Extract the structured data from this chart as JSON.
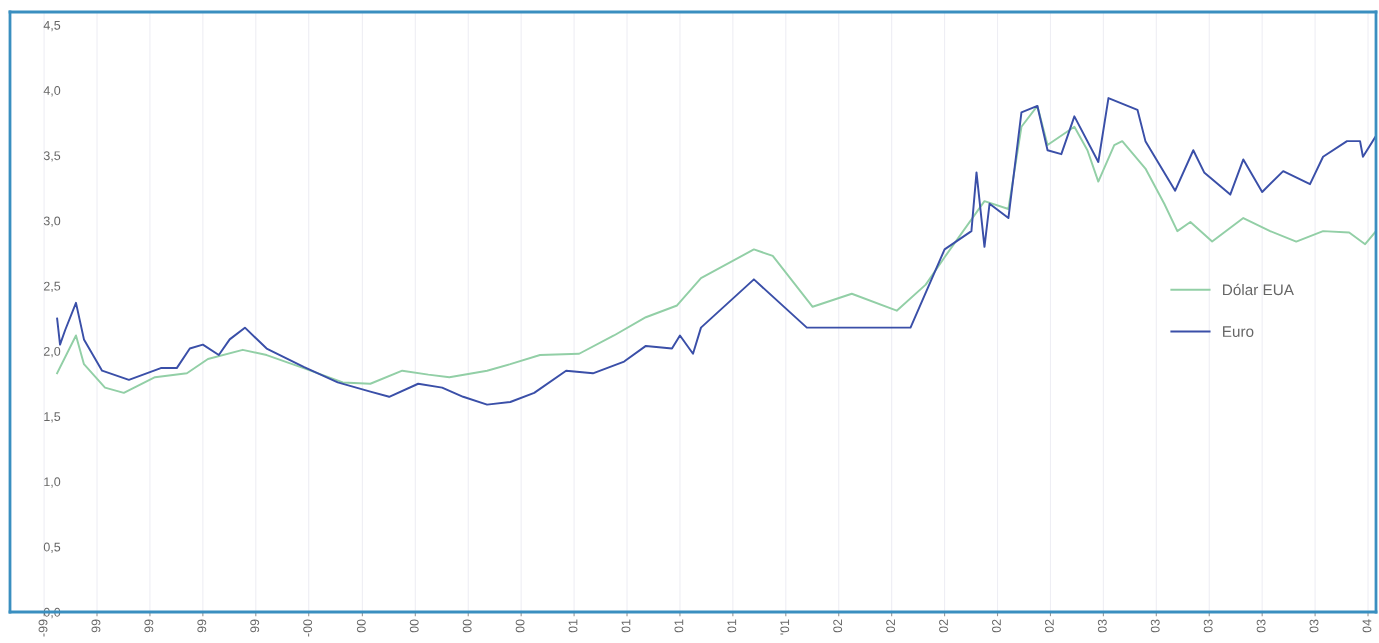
{
  "chart_data": {
    "type": "line",
    "xlim": [
      "1998-11-15",
      "2004-01-12"
    ],
    "xticks": [
      {
        "value": "1999-01-01",
        "label": "-99"
      },
      {
        "value": "1999-03-15",
        "label": "99"
      },
      {
        "value": "1999-05-27",
        "label": "99"
      },
      {
        "value": "1999-08-08",
        "label": "99"
      },
      {
        "value": "1999-10-20",
        "label": "99"
      },
      {
        "value": "2000-01-01",
        "label": "-00"
      },
      {
        "value": "2000-03-15",
        "label": "00"
      },
      {
        "value": "2000-05-27",
        "label": "00"
      },
      {
        "value": "2000-08-08",
        "label": "00"
      },
      {
        "value": "2000-10-20",
        "label": "00"
      },
      {
        "value": "2001-01-01",
        "label": "01"
      },
      {
        "value": "2001-03-15",
        "label": "01"
      },
      {
        "value": "2001-05-27",
        "label": "01"
      },
      {
        "value": "2001-08-08",
        "label": "01"
      },
      {
        "value": "2001-10-20",
        "label": "'01"
      },
      {
        "value": "2002-01-01",
        "label": "02"
      },
      {
        "value": "2002-03-15",
        "label": "02"
      },
      {
        "value": "2002-05-27",
        "label": "02"
      },
      {
        "value": "2002-08-08",
        "label": "02"
      },
      {
        "value": "2002-10-20",
        "label": "02"
      },
      {
        "value": "2003-01-01",
        "label": "03"
      },
      {
        "value": "2003-03-15",
        "label": "03"
      },
      {
        "value": "2003-05-27",
        "label": "03"
      },
      {
        "value": "2003-08-08",
        "label": "03"
      },
      {
        "value": "2003-10-20",
        "label": "03"
      },
      {
        "value": "2004-01-01",
        "label": "04"
      }
    ],
    "ylim": [
      0,
      4.6
    ],
    "yticks": [
      {
        "value": 0,
        "label": "0,0"
      },
      {
        "value": 0.5,
        "label": "0,5"
      },
      {
        "value": 1.0,
        "label": "1,0"
      },
      {
        "value": 1.5,
        "label": "1,5"
      },
      {
        "value": 2.0,
        "label": "2,0"
      },
      {
        "value": 2.5,
        "label": "2,5"
      },
      {
        "value": 3.0,
        "label": "3,0"
      },
      {
        "value": 3.5,
        "label": "3,5"
      },
      {
        "value": 4.0,
        "label": "4,0"
      },
      {
        "value": 4.5,
        "label": "4,5"
      }
    ],
    "grid": "x",
    "legend": "right",
    "series": [
      {
        "name": "Dólar EUA",
        "color": "#92cfa6",
        "x": [
          "1999-01-19",
          "1999-02-14",
          "1999-02-25",
          "1999-03-26",
          "1999-04-21",
          "1999-06-03",
          "1999-07-17",
          "1999-08-15",
          "1999-10-02",
          "1999-11-04",
          "1999-12-25",
          "2000-02-17",
          "2000-03-26",
          "2000-05-09",
          "2000-06-14",
          "2000-07-13",
          "2000-09-03",
          "2000-10-05",
          "2000-11-15",
          "2001-01-08",
          "2001-02-25",
          "2001-04-10",
          "2001-05-23",
          "2001-06-25",
          "2001-09-06",
          "2001-10-02",
          "2001-11-26",
          "2002-01-19",
          "2002-03-22",
          "2002-05-01",
          "2002-05-27",
          "2002-07-21",
          "2002-08-23",
          "2002-09-10",
          "2002-10-02",
          "2002-10-16",
          "2002-11-22",
          "2002-12-10",
          "2002-12-25",
          "2003-01-16",
          "2003-01-27",
          "2003-02-28",
          "2003-03-26",
          "2003-04-13",
          "2003-05-01",
          "2003-05-31",
          "2003-07-13",
          "2003-08-19",
          "2003-09-24",
          "2003-10-31",
          "2003-12-06",
          "2003-12-28",
          "2004-01-12"
        ],
        "values": [
          1.83,
          2.12,
          1.9,
          1.72,
          1.68,
          1.8,
          1.83,
          1.94,
          2.01,
          1.97,
          1.87,
          1.76,
          1.75,
          1.85,
          1.82,
          1.8,
          1.85,
          1.9,
          1.97,
          1.98,
          2.12,
          2.26,
          2.35,
          2.56,
          2.78,
          2.73,
          2.34,
          2.44,
          2.31,
          2.51,
          2.72,
          3.15,
          3.09,
          3.72,
          3.88,
          3.58,
          3.72,
          3.54,
          3.3,
          3.58,
          3.61,
          3.4,
          3.13,
          2.92,
          2.99,
          2.84,
          3.02,
          2.92,
          2.84,
          2.92,
          2.91,
          2.82,
          2.92
        ]
      },
      {
        "name": "Euro",
        "color": "#3a4fa8",
        "x": [
          "1999-01-19",
          "1999-01-23",
          "1999-01-30",
          "1999-02-14",
          "1999-02-25",
          "1999-03-22",
          "1999-04-28",
          "1999-06-11",
          "1999-07-03",
          "1999-07-21",
          "1999-08-08",
          "1999-08-30",
          "1999-09-14",
          "1999-10-05",
          "1999-11-04",
          "1999-12-25",
          "2000-02-10",
          "2000-03-26",
          "2000-04-21",
          "2000-05-31",
          "2000-07-03",
          "2000-08-01",
          "2000-09-03",
          "2000-10-05",
          "2000-11-07",
          "2000-12-21",
          "2001-01-27",
          "2001-03-11",
          "2001-04-10",
          "2001-05-16",
          "2001-05-27",
          "2001-06-14",
          "2001-06-25",
          "2001-09-06",
          "2001-11-18",
          "2002-04-10",
          "2002-05-27",
          "2002-07-03",
          "2002-07-10",
          "2002-07-21",
          "2002-07-28",
          "2002-08-23",
          "2002-09-10",
          "2002-10-02",
          "2002-10-16",
          "2002-11-04",
          "2002-11-22",
          "2002-12-25",
          "2003-01-08",
          "2003-02-17",
          "2003-02-28",
          "2003-04-10",
          "2003-05-05",
          "2003-05-20",
          "2003-06-25",
          "2003-07-13",
          "2003-08-08",
          "2003-09-06",
          "2003-10-13",
          "2003-10-31",
          "2003-12-03",
          "2003-12-21",
          "2003-12-25",
          "2004-01-12"
        ],
        "values": [
          2.25,
          2.05,
          2.16,
          2.37,
          2.09,
          1.85,
          1.78,
          1.87,
          1.87,
          2.02,
          2.05,
          1.97,
          2.09,
          2.18,
          2.02,
          1.88,
          1.76,
          1.69,
          1.65,
          1.75,
          1.72,
          1.65,
          1.59,
          1.61,
          1.68,
          1.85,
          1.83,
          1.92,
          2.04,
          2.02,
          2.12,
          1.98,
          2.18,
          2.55,
          2.18,
          2.18,
          2.78,
          2.92,
          3.37,
          2.8,
          3.13,
          3.02,
          3.83,
          3.88,
          3.54,
          3.51,
          3.8,
          3.45,
          3.94,
          3.85,
          3.61,
          3.23,
          3.54,
          3.37,
          3.2,
          3.47,
          3.22,
          3.38,
          3.28,
          3.49,
          3.61,
          3.61,
          3.49,
          3.65
        ]
      }
    ]
  }
}
